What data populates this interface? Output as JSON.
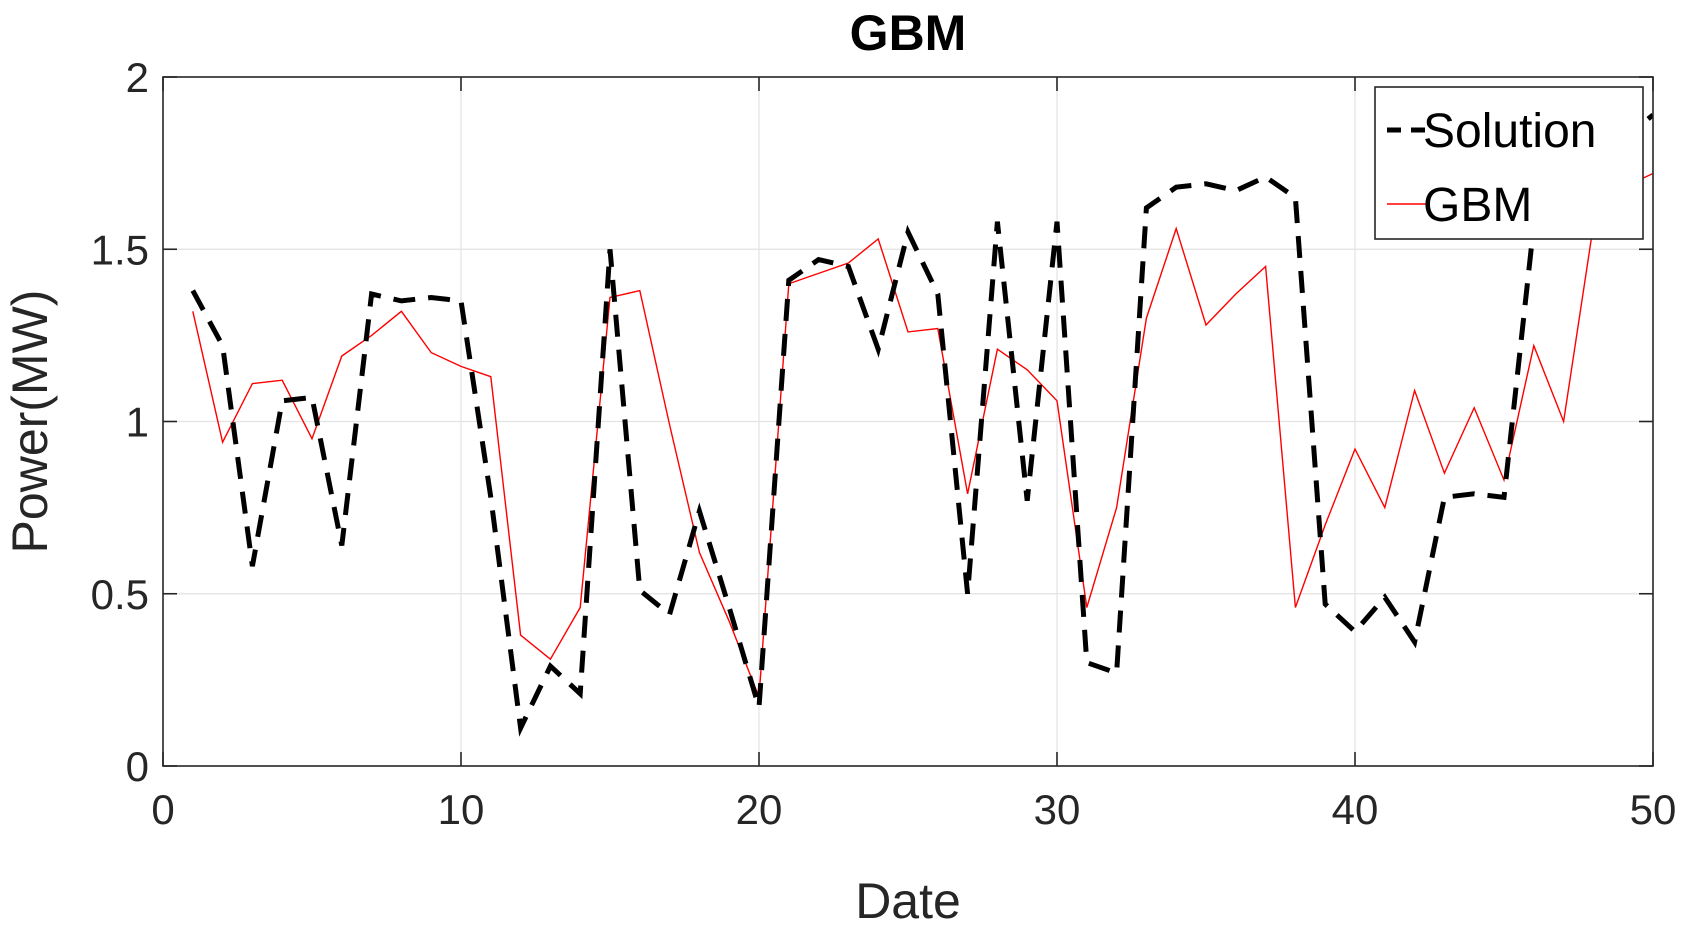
{
  "chart_data": {
    "type": "line",
    "title": "GBM",
    "xlabel": "Date",
    "ylabel": "Power(MW)",
    "xlim": [
      0,
      50
    ],
    "ylim": [
      0,
      2
    ],
    "xticks": [
      "0",
      "10",
      "20",
      "30",
      "40",
      "50"
    ],
    "yticks": [
      "0",
      "0.5",
      "1",
      "1.5",
      "2"
    ],
    "grid": true,
    "legend_position": "top-right",
    "x": [
      1,
      2,
      3,
      4,
      5,
      6,
      7,
      8,
      9,
      10,
      11,
      12,
      13,
      14,
      15,
      16,
      17,
      18,
      19,
      20,
      21,
      22,
      23,
      24,
      25,
      26,
      27,
      28,
      29,
      30,
      31,
      32,
      33,
      34,
      35,
      36,
      37,
      38,
      39,
      40,
      41,
      42,
      43,
      44,
      45,
      46,
      47,
      48,
      49,
      50
    ],
    "series": [
      {
        "name": "Solution",
        "color": "#000000",
        "style": "dashed",
        "values": [
          1.38,
          1.22,
          0.58,
          1.06,
          1.07,
          0.64,
          1.37,
          1.35,
          1.36,
          1.35,
          0.78,
          0.11,
          0.29,
          0.21,
          1.5,
          0.51,
          0.44,
          0.74,
          0.46,
          0.17,
          1.41,
          1.47,
          1.45,
          1.21,
          1.55,
          1.37,
          0.5,
          1.58,
          0.77,
          1.58,
          0.3,
          0.27,
          1.62,
          1.68,
          1.69,
          1.67,
          1.71,
          1.65,
          0.47,
          0.39,
          0.49,
          0.36,
          0.78,
          0.79,
          0.78,
          1.57,
          1.74,
          1.76,
          1.82,
          1.89
        ]
      },
      {
        "name": "GBM",
        "color": "#ff0000",
        "style": "solid",
        "values": [
          1.32,
          0.94,
          1.11,
          1.12,
          0.95,
          1.19,
          1.25,
          1.32,
          1.2,
          1.16,
          1.13,
          0.38,
          0.31,
          0.46,
          1.36,
          1.38,
          0.99,
          0.62,
          0.42,
          0.2,
          1.4,
          1.43,
          1.46,
          1.53,
          1.26,
          1.27,
          0.79,
          1.21,
          1.15,
          1.06,
          0.46,
          0.75,
          1.3,
          1.56,
          1.28,
          1.37,
          1.45,
          0.46,
          0.7,
          0.92,
          0.75,
          1.09,
          0.85,
          1.04,
          0.83,
          1.22,
          1.0,
          1.57,
          1.68,
          1.72
        ]
      }
    ]
  }
}
